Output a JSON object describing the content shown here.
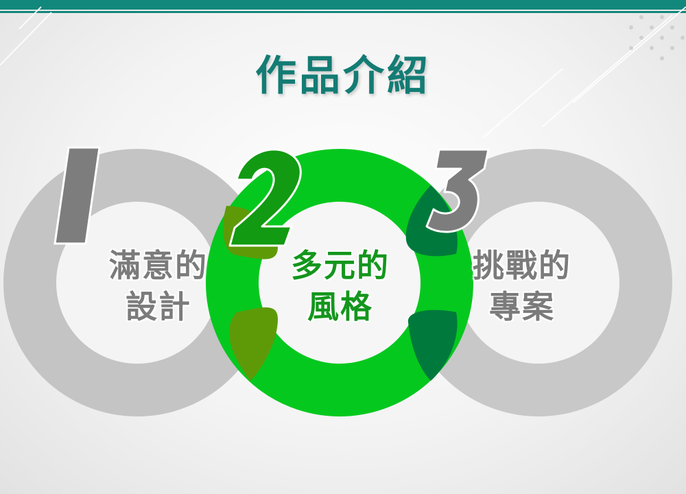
{
  "title": "作品介紹",
  "items": [
    {
      "number": "1",
      "line1": "滿意的",
      "line2": "設計"
    },
    {
      "number": "2",
      "line1": "多元的",
      "line2": "風格"
    },
    {
      "number": "3",
      "line1": "挑戰的",
      "line2": "專案"
    }
  ],
  "colors": {
    "accent": "#12877c",
    "ring_grey": "#c6c6c6",
    "ring_green": "#05c81e",
    "overlap_left": "#5e9a08",
    "overlap_right": "#007a3c",
    "number_green": "#129a12",
    "number_grey": "#7d7d7d"
  }
}
